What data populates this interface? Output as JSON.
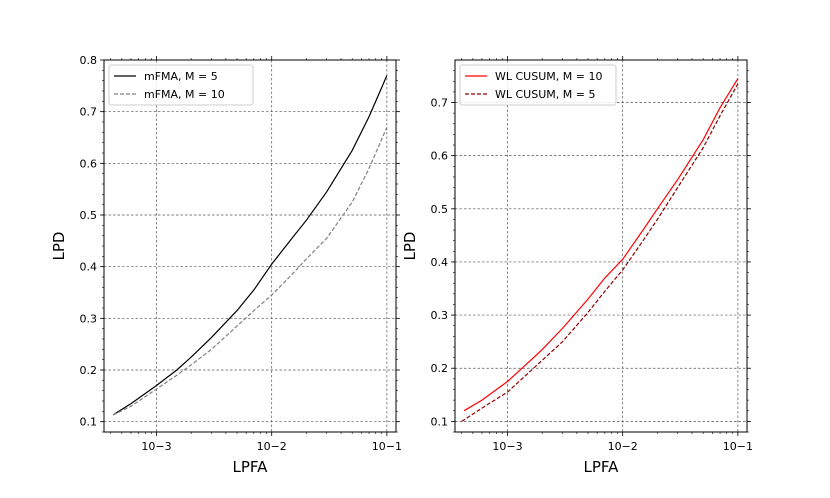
{
  "chart_data": [
    {
      "type": "line",
      "xscale": "log",
      "xlim": [
        0.00035,
        0.12
      ],
      "ylim": [
        0.08,
        0.8
      ],
      "xticks": [
        0.001,
        0.01,
        0.1
      ],
      "xtick_labels": [
        "10−3",
        "10−2",
        "10−1"
      ],
      "yticks": [
        0.1,
        0.2,
        0.3,
        0.4,
        0.5,
        0.6,
        0.7,
        0.8
      ],
      "ytick_labels": [
        "0.1",
        "0.2",
        "0.3",
        "0.4",
        "0.5",
        "0.6",
        "0.7",
        "0.8"
      ],
      "xlabel": "LPFA",
      "ylabel": "LPD",
      "grid": true,
      "legend_position": "top-left",
      "series": [
        {
          "name": "mFMA, M = 5",
          "color": "#000000",
          "dash": "solid",
          "x": [
            0.00042,
            0.0006,
            0.001,
            0.0015,
            0.002,
            0.003,
            0.005,
            0.007,
            0.01,
            0.015,
            0.02,
            0.03,
            0.05,
            0.07,
            0.1
          ],
          "y": [
            0.113,
            0.135,
            0.17,
            0.2,
            0.225,
            0.263,
            0.315,
            0.355,
            0.405,
            0.455,
            0.49,
            0.545,
            0.625,
            0.69,
            0.77
          ]
        },
        {
          "name": "mFMA, M = 10",
          "color": "#808080",
          "dash": "dashed",
          "x": [
            0.00042,
            0.0006,
            0.001,
            0.0015,
            0.002,
            0.003,
            0.005,
            0.007,
            0.01,
            0.015,
            0.02,
            0.03,
            0.05,
            0.07,
            0.1
          ],
          "y": [
            0.113,
            0.13,
            0.163,
            0.19,
            0.21,
            0.24,
            0.285,
            0.315,
            0.345,
            0.385,
            0.415,
            0.455,
            0.525,
            0.59,
            0.67
          ]
        }
      ]
    },
    {
      "type": "line",
      "xscale": "log",
      "xlim": [
        0.00035,
        0.12
      ],
      "ylim": [
        0.08,
        0.78
      ],
      "xticks": [
        0.001,
        0.01,
        0.1
      ],
      "xtick_labels": [
        "10−3",
        "10−2",
        "10−1"
      ],
      "yticks": [
        0.1,
        0.2,
        0.3,
        0.4,
        0.5,
        0.6,
        0.7
      ],
      "ytick_labels": [
        "0.1",
        "0.2",
        "0.3",
        "0.4",
        "0.5",
        "0.6",
        "0.7"
      ],
      "xlabel": "LPFA",
      "ylabel": "LPD",
      "grid": true,
      "legend_position": "top-left",
      "series": [
        {
          "name": "WL CUSUM, M = 10",
          "color": "#ff0000",
          "dash": "solid",
          "x": [
            0.00042,
            0.0006,
            0.001,
            0.0015,
            0.002,
            0.003,
            0.005,
            0.007,
            0.01,
            0.015,
            0.02,
            0.03,
            0.05,
            0.07,
            0.1
          ],
          "y": [
            0.12,
            0.14,
            0.175,
            0.21,
            0.235,
            0.275,
            0.33,
            0.37,
            0.405,
            0.46,
            0.5,
            0.555,
            0.63,
            0.69,
            0.745
          ]
        },
        {
          "name": "WL CUSUM, M = 5",
          "color": "#8b0000",
          "dash": "dashed",
          "x": [
            0.0004,
            0.0006,
            0.001,
            0.0015,
            0.002,
            0.003,
            0.005,
            0.007,
            0.01,
            0.015,
            0.02,
            0.03,
            0.05,
            0.07,
            0.1
          ],
          "y": [
            0.1,
            0.125,
            0.155,
            0.19,
            0.215,
            0.25,
            0.305,
            0.345,
            0.385,
            0.44,
            0.48,
            0.54,
            0.615,
            0.675,
            0.735
          ]
        }
      ]
    }
  ]
}
